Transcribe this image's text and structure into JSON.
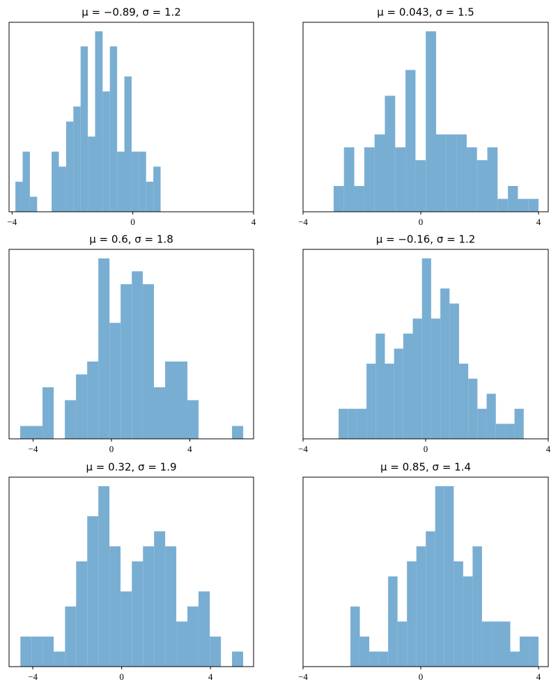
{
  "chart_data": [
    {
      "type": "histogram",
      "title": "μ = −0.89,    σ = 1.2",
      "color": "#79aed3",
      "bins": [
        -3.89,
        -3.65,
        -3.41,
        -3.17,
        -2.93,
        -2.69,
        -2.45,
        -2.21,
        -1.97,
        -1.73,
        -1.49,
        -1.25,
        -1.0,
        -0.76,
        -0.52,
        -0.28,
        -0.04,
        0.2,
        0.44,
        0.68,
        0.92
      ],
      "values": [
        2,
        4,
        1,
        0,
        0,
        4,
        3,
        6,
        7,
        11,
        5,
        12,
        8,
        11,
        4,
        9,
        4,
        4,
        2,
        3
      ],
      "xlim": [
        -4.1,
        4
      ],
      "ylim": [
        0,
        12.6
      ],
      "xticks": [
        {
          "value": -4,
          "label": "−4"
        },
        0,
        4
      ]
    },
    {
      "type": "histogram",
      "title": "μ = 0.043,    σ = 1.5",
      "color": "#79aed3",
      "bins": [
        -2.96,
        -2.61,
        -2.26,
        -1.92,
        -1.57,
        -1.22,
        -0.87,
        -0.52,
        -0.18,
        0.17,
        0.52,
        0.87,
        1.22,
        1.56,
        1.91,
        2.26,
        2.61,
        2.96,
        3.3,
        3.65,
        4.0
      ],
      "values": [
        2,
        5,
        2,
        5,
        6,
        9,
        5,
        11,
        4,
        14,
        6,
        6,
        6,
        5,
        4,
        5,
        1,
        2,
        1,
        1
      ],
      "xlim": [
        -4,
        4.33
      ],
      "ylim": [
        0,
        14.7
      ],
      "xticks": [
        {
          "value": -4,
          "label": "−4"
        },
        0,
        4
      ]
    },
    {
      "type": "histogram",
      "title": "μ = 0.6,    σ = 1.8",
      "color": "#79aed3",
      "bins": [
        -4.66,
        -4.09,
        -3.52,
        -2.95,
        -2.38,
        -1.81,
        -1.24,
        -0.67,
        -0.1,
        0.47,
        1.04,
        1.6,
        2.17,
        2.74,
        3.31,
        3.88,
        4.45,
        5.02,
        5.59,
        6.16,
        6.73
      ],
      "values": [
        1,
        1,
        4,
        0,
        3,
        5,
        6,
        14,
        9,
        12,
        13,
        12,
        4,
        6,
        6,
        3,
        0,
        0,
        0,
        1
      ],
      "xlim": [
        -5.23,
        7.26
      ],
      "ylim": [
        0,
        14.7
      ],
      "xticks": [
        {
          "value": -4,
          "label": "−4"
        },
        0,
        4
      ]
    },
    {
      "type": "histogram",
      "title": "μ = −0.16,    σ = 1.2",
      "color": "#79aed3",
      "bins": [
        -2.84,
        -2.54,
        -2.24,
        -1.93,
        -1.63,
        -1.33,
        -1.03,
        -0.73,
        -0.42,
        -0.12,
        0.18,
        0.48,
        0.78,
        1.09,
        1.39,
        1.69,
        1.99,
        2.29,
        2.6,
        2.9,
        3.2
      ],
      "values": [
        2,
        2,
        2,
        5,
        7,
        5,
        6,
        7,
        8,
        12,
        8,
        10,
        9,
        5,
        4,
        2,
        3,
        1,
        1,
        2
      ],
      "xlim": [
        -4,
        4
      ],
      "ylim": [
        0,
        12.6
      ],
      "xticks": [
        {
          "value": -4,
          "label": "−4"
        },
        0,
        4
      ]
    },
    {
      "type": "histogram",
      "title": "μ = 0.32,    σ = 1.9",
      "color": "#79aed3",
      "bins": [
        -4.56,
        -4.06,
        -3.56,
        -3.06,
        -2.55,
        -2.05,
        -1.55,
        -1.05,
        -0.55,
        -0.05,
        0.46,
        0.96,
        1.46,
        1.96,
        2.46,
        2.96,
        3.46,
        3.97,
        4.47,
        4.97,
        5.47
      ],
      "values": [
        2,
        2,
        2,
        1,
        4,
        7,
        10,
        12,
        8,
        5,
        7,
        8,
        9,
        8,
        3,
        4,
        5,
        2,
        0,
        1
      ],
      "xlim": [
        -5.07,
        5.94
      ],
      "ylim": [
        0,
        12.6
      ],
      "xticks": [
        {
          "value": -4,
          "label": "−4"
        },
        0,
        4
      ]
    },
    {
      "type": "histogram",
      "title": "μ = 0.85,    σ = 1.4",
      "color": "#79aed3",
      "bins": [
        -2.39,
        -2.07,
        -1.75,
        -1.43,
        -1.11,
        -0.79,
        -0.47,
        -0.15,
        0.17,
        0.49,
        0.8,
        1.12,
        1.44,
        1.76,
        2.08,
        2.4,
        2.72,
        3.04,
        3.36,
        3.68,
        4.0
      ],
      "values": [
        4,
        2,
        1,
        1,
        6,
        3,
        7,
        8,
        9,
        12,
        12,
        7,
        6,
        8,
        3,
        3,
        3,
        1,
        2,
        2
      ],
      "xlim": [
        -4,
        4.33
      ],
      "ylim": [
        0,
        12.6
      ],
      "xticks": [
        {
          "value": -4,
          "label": "−4"
        },
        0,
        4
      ]
    }
  ]
}
